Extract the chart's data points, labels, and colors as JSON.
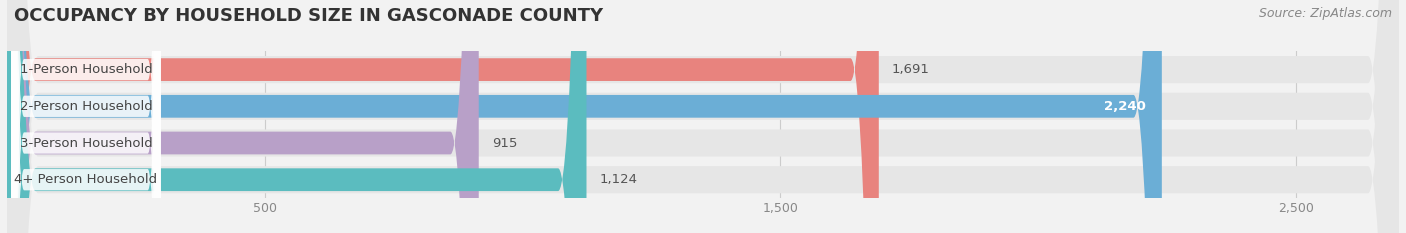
{
  "title": "OCCUPANCY BY HOUSEHOLD SIZE IN GASCONADE COUNTY",
  "source": "Source: ZipAtlas.com",
  "categories": [
    "1-Person Household",
    "2-Person Household",
    "3-Person Household",
    "4+ Person Household"
  ],
  "values": [
    1691,
    2240,
    915,
    1124
  ],
  "bar_colors": [
    "#e8837e",
    "#6baed6",
    "#b8a0c8",
    "#5bbcbf"
  ],
  "label_values": [
    "1,691",
    "2,240",
    "915",
    "1,124"
  ],
  "label_inside": [
    false,
    true,
    false,
    false
  ],
  "xlim_max": 2700,
  "xticks": [
    500,
    1500,
    2500
  ],
  "xtick_labels": [
    "500",
    "1,500",
    "2,500"
  ],
  "bg_color": "#f2f2f2",
  "row_bg_color": "#e6e6e6",
  "title_fontsize": 13,
  "source_fontsize": 9,
  "bar_height": 0.62,
  "value_fontsize": 9.5,
  "category_fontsize": 9.5
}
